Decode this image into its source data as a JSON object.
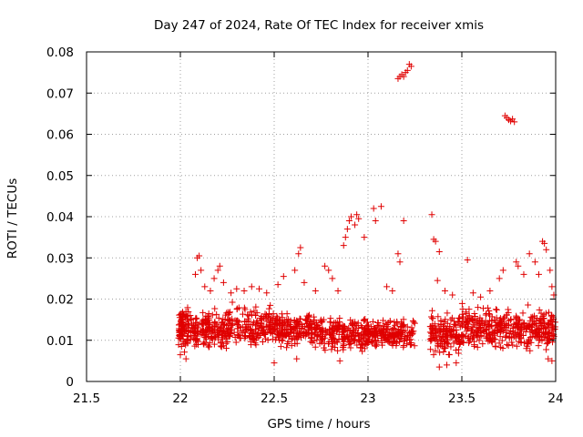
{
  "chart_data": {
    "type": "scatter",
    "title": "Day 247 of 2024, Rate Of TEC Index for receiver xmis",
    "xlabel": "GPS time / hours",
    "ylabel": "ROTI / TECUs",
    "xlim": [
      21.5,
      24
    ],
    "ylim": [
      0,
      0.08
    ],
    "grid": true,
    "marker": "+",
    "color": "#e00000",
    "x_ticks": [
      {
        "value": 21.5,
        "label": "21.5"
      },
      {
        "value": 22,
        "label": "22"
      },
      {
        "value": 22.5,
        "label": "22.5"
      },
      {
        "value": 23,
        "label": "23"
      },
      {
        "value": 23.5,
        "label": "23.5"
      },
      {
        "value": 24,
        "label": "24"
      }
    ],
    "y_ticks": [
      {
        "value": 0,
        "label": "0"
      },
      {
        "value": 0.01,
        "label": "0.01"
      },
      {
        "value": 0.02,
        "label": "0.02"
      },
      {
        "value": 0.03,
        "label": "0.03"
      },
      {
        "value": 0.04,
        "label": "0.04"
      },
      {
        "value": 0.05,
        "label": "0.05"
      },
      {
        "value": 0.06,
        "label": "0.06"
      },
      {
        "value": 0.07,
        "label": "0.07"
      },
      {
        "value": 0.08,
        "label": "0.08"
      }
    ],
    "bands": [
      {
        "x_start": 21.99,
        "x_end": 22.03,
        "y_min": 0.006,
        "y_max": 0.02,
        "count": 70
      },
      {
        "x_start": 22.03,
        "x_end": 22.25,
        "y_min": 0.006,
        "y_max": 0.019,
        "count": 200
      },
      {
        "x_start": 22.25,
        "x_end": 22.5,
        "y_min": 0.007,
        "y_max": 0.02,
        "count": 180
      },
      {
        "x_start": 22.5,
        "x_end": 22.75,
        "y_min": 0.007,
        "y_max": 0.018,
        "count": 200
      },
      {
        "x_start": 22.75,
        "x_end": 23.0,
        "y_min": 0.006,
        "y_max": 0.017,
        "count": 200
      },
      {
        "x_start": 23.0,
        "x_end": 23.25,
        "y_min": 0.007,
        "y_max": 0.016,
        "count": 190
      },
      {
        "x_start": 23.33,
        "x_end": 23.5,
        "y_min": 0.005,
        "y_max": 0.018,
        "count": 150
      },
      {
        "x_start": 23.5,
        "x_end": 23.75,
        "y_min": 0.006,
        "y_max": 0.02,
        "count": 200
      },
      {
        "x_start": 23.75,
        "x_end": 24.0,
        "y_min": 0.006,
        "y_max": 0.019,
        "count": 200
      }
    ],
    "points": [
      {
        "x": 22.08,
        "y": 0.026
      },
      {
        "x": 22.09,
        "y": 0.03
      },
      {
        "x": 22.1,
        "y": 0.0305
      },
      {
        "x": 22.11,
        "y": 0.027
      },
      {
        "x": 22.13,
        "y": 0.023
      },
      {
        "x": 22.16,
        "y": 0.022
      },
      {
        "x": 22.18,
        "y": 0.025
      },
      {
        "x": 22.2,
        "y": 0.027
      },
      {
        "x": 22.21,
        "y": 0.028
      },
      {
        "x": 22.23,
        "y": 0.024
      },
      {
        "x": 22.27,
        "y": 0.0215
      },
      {
        "x": 22.3,
        "y": 0.0225
      },
      {
        "x": 22.34,
        "y": 0.022
      },
      {
        "x": 22.38,
        "y": 0.023
      },
      {
        "x": 22.42,
        "y": 0.0225
      },
      {
        "x": 22.46,
        "y": 0.0215
      },
      {
        "x": 22.52,
        "y": 0.0235
      },
      {
        "x": 22.55,
        "y": 0.0255
      },
      {
        "x": 22.61,
        "y": 0.027
      },
      {
        "x": 22.63,
        "y": 0.031
      },
      {
        "x": 22.64,
        "y": 0.0325
      },
      {
        "x": 22.66,
        "y": 0.024
      },
      {
        "x": 22.72,
        "y": 0.022
      },
      {
        "x": 22.77,
        "y": 0.028
      },
      {
        "x": 22.79,
        "y": 0.027
      },
      {
        "x": 22.81,
        "y": 0.025
      },
      {
        "x": 22.84,
        "y": 0.022
      },
      {
        "x": 22.87,
        "y": 0.033
      },
      {
        "x": 22.88,
        "y": 0.035
      },
      {
        "x": 22.89,
        "y": 0.037
      },
      {
        "x": 22.9,
        "y": 0.039
      },
      {
        "x": 22.91,
        "y": 0.04
      },
      {
        "x": 22.93,
        "y": 0.038
      },
      {
        "x": 22.94,
        "y": 0.0405
      },
      {
        "x": 22.95,
        "y": 0.0395
      },
      {
        "x": 22.98,
        "y": 0.035
      },
      {
        "x": 23.03,
        "y": 0.042
      },
      {
        "x": 23.04,
        "y": 0.039
      },
      {
        "x": 23.07,
        "y": 0.0425
      },
      {
        "x": 23.1,
        "y": 0.023
      },
      {
        "x": 23.13,
        "y": 0.022
      },
      {
        "x": 23.16,
        "y": 0.031
      },
      {
        "x": 23.17,
        "y": 0.029
      },
      {
        "x": 23.19,
        "y": 0.039
      },
      {
        "x": 23.16,
        "y": 0.0735
      },
      {
        "x": 23.17,
        "y": 0.074
      },
      {
        "x": 23.18,
        "y": 0.0745
      },
      {
        "x": 23.19,
        "y": 0.074
      },
      {
        "x": 23.2,
        "y": 0.075
      },
      {
        "x": 23.21,
        "y": 0.0755
      },
      {
        "x": 23.22,
        "y": 0.077
      },
      {
        "x": 23.23,
        "y": 0.0765
      },
      {
        "x": 23.34,
        "y": 0.0405
      },
      {
        "x": 23.35,
        "y": 0.0345
      },
      {
        "x": 23.36,
        "y": 0.034
      },
      {
        "x": 23.37,
        "y": 0.0245
      },
      {
        "x": 23.38,
        "y": 0.0315
      },
      {
        "x": 23.41,
        "y": 0.022
      },
      {
        "x": 23.45,
        "y": 0.021
      },
      {
        "x": 23.53,
        "y": 0.0295
      },
      {
        "x": 23.56,
        "y": 0.0215
      },
      {
        "x": 23.6,
        "y": 0.0205
      },
      {
        "x": 23.65,
        "y": 0.022
      },
      {
        "x": 23.7,
        "y": 0.025
      },
      {
        "x": 23.72,
        "y": 0.027
      },
      {
        "x": 23.73,
        "y": 0.0645
      },
      {
        "x": 23.74,
        "y": 0.064
      },
      {
        "x": 23.75,
        "y": 0.0635
      },
      {
        "x": 23.76,
        "y": 0.0632
      },
      {
        "x": 23.77,
        "y": 0.0637
      },
      {
        "x": 23.78,
        "y": 0.063
      },
      {
        "x": 23.79,
        "y": 0.029
      },
      {
        "x": 23.8,
        "y": 0.028
      },
      {
        "x": 23.83,
        "y": 0.026
      },
      {
        "x": 23.86,
        "y": 0.031
      },
      {
        "x": 23.89,
        "y": 0.029
      },
      {
        "x": 23.91,
        "y": 0.026
      },
      {
        "x": 23.93,
        "y": 0.034
      },
      {
        "x": 23.94,
        "y": 0.0335
      },
      {
        "x": 23.95,
        "y": 0.032
      },
      {
        "x": 23.97,
        "y": 0.027
      },
      {
        "x": 23.98,
        "y": 0.023
      },
      {
        "x": 23.99,
        "y": 0.021
      },
      {
        "x": 22.5,
        "y": 0.0045
      },
      {
        "x": 22.62,
        "y": 0.0055
      },
      {
        "x": 22.85,
        "y": 0.005
      },
      {
        "x": 23.38,
        "y": 0.0035
      },
      {
        "x": 23.42,
        "y": 0.004
      },
      {
        "x": 23.47,
        "y": 0.0045
      },
      {
        "x": 23.98,
        "y": 0.005
      },
      {
        "x": 23.96,
        "y": 0.0055
      },
      {
        "x": 22.0,
        "y": 0.0065
      },
      {
        "x": 22.03,
        "y": 0.0055
      }
    ]
  }
}
